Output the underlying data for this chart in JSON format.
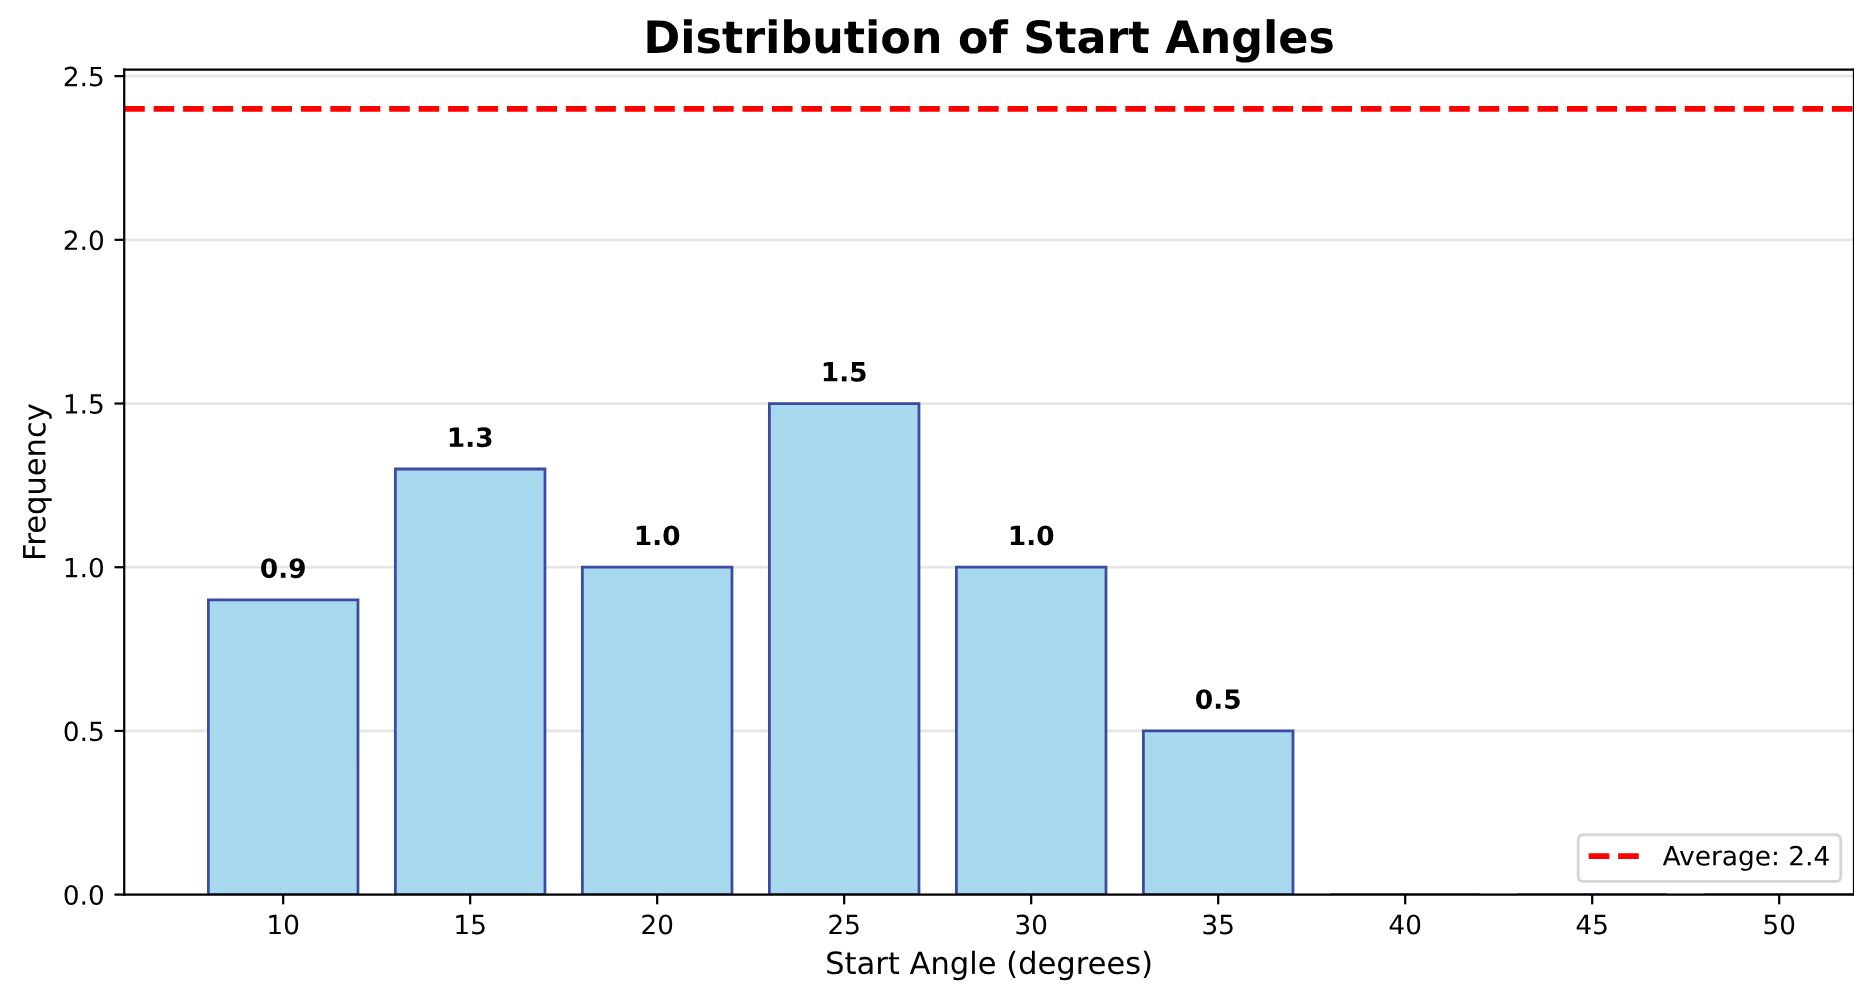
{
  "chart_data": {
    "type": "bar",
    "title": "Distribution of Start Angles",
    "xlabel": "Start Angle (degrees)",
    "ylabel": "Frequency",
    "categories": [
      "10",
      "15",
      "20",
      "25",
      "30",
      "35",
      "40",
      "45",
      "50"
    ],
    "values": [
      0.9,
      1.3,
      1.0,
      1.5,
      1.0,
      0.5,
      0,
      0,
      0
    ],
    "value_labels": [
      "0.9",
      "1.3",
      "1.0",
      "1.5",
      "1.0",
      "0.5",
      null,
      null,
      null
    ],
    "color": "#a8d8ed",
    "ylim": [
      0,
      2.52
    ],
    "yticks": [
      {
        "value": 0,
        "label": "0.0"
      },
      {
        "value": 0.5,
        "label": "0.5"
      },
      {
        "value": 1.0,
        "label": "1.0"
      },
      {
        "value": 1.5,
        "label": "1.5"
      },
      {
        "value": 2.0,
        "label": "2.0"
      },
      2.5
    ],
    "ref_lines": [
      {
        "axis": "y",
        "value": 2.4,
        "label": "Average: 2.4",
        "color": "#ff0000",
        "line_style": "dashed"
      }
    ],
    "grid": "y",
    "legend": "bottom right"
  }
}
